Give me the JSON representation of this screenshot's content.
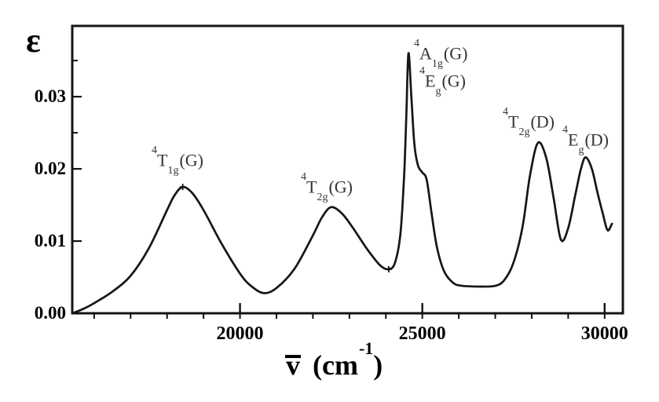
{
  "figure": {
    "xaxis_title": {
      "symbol": "v",
      "unit_open": "(cm",
      "exponent": "-1",
      "unit_close": ")"
    },
    "peak_labels": [
      {
        "sup": "4",
        "term": "T",
        "sub": "1g",
        "state": "(G)"
      },
      {
        "sup": "4",
        "term": "T",
        "sub": "2g",
        "state": "(G)"
      },
      {
        "sup": "4",
        "term": "A",
        "sub": "1g",
        "state": "(G)"
      },
      {
        "sup": "4",
        "term": "E",
        "sub": "g",
        "state": "(G)"
      },
      {
        "sup": "4",
        "term": "T",
        "sub": "2g",
        "state": "(D)"
      },
      {
        "sup": "4",
        "term": "E",
        "sub": "g",
        "state": "(D)"
      }
    ]
  },
  "chart_data": {
    "type": "line",
    "title": "",
    "xlabel": "v̄ (cm⁻¹)",
    "ylabel": "ε",
    "xlim": [
      15400,
      30500
    ],
    "ylim": [
      0,
      0.0398
    ],
    "grid": false,
    "x_ticks_major": [
      20000,
      25000,
      30000
    ],
    "x_tick_labels": [
      "20000",
      "25000",
      "30000"
    ],
    "x_ticks_minor": [
      16000,
      17000,
      18000,
      19000,
      20000,
      21000,
      22000,
      23000,
      24000,
      25000,
      26000,
      27000,
      28000,
      29000,
      30000
    ],
    "y_ticks_major": [
      0,
      0.01,
      0.02,
      0.03
    ],
    "y_tick_labels": [
      "0.00",
      "0.01",
      "0.02",
      "0.03"
    ],
    "y_ticks_minor": [
      0.025,
      0.035
    ],
    "line_color": "#161616",
    "series": [
      {
        "name": "epsilon",
        "x": [
          15400,
          15700,
          16000,
          16500,
          17000,
          17500,
          18000,
          18200,
          18430,
          18700,
          19000,
          19500,
          20000,
          20300,
          20650,
          21000,
          21500,
          22000,
          22250,
          22500,
          22800,
          23100,
          23500,
          23850,
          24080,
          24250,
          24400,
          24500,
          24560,
          24620,
          24700,
          24780,
          24880,
          25000,
          25120,
          25250,
          25400,
          25600,
          25850,
          26100,
          26600,
          27000,
          27250,
          27500,
          27750,
          27950,
          28170,
          28400,
          28600,
          28800,
          29000,
          29200,
          29350,
          29480,
          29650,
          29800,
          29950,
          30080,
          30200
        ],
        "y": [
          0.0,
          0.0006,
          0.0014,
          0.003,
          0.0052,
          0.009,
          0.0143,
          0.0163,
          0.0175,
          0.0166,
          0.0143,
          0.0096,
          0.0055,
          0.0038,
          0.0028,
          0.0035,
          0.0062,
          0.0108,
          0.0133,
          0.0147,
          0.0138,
          0.0118,
          0.0088,
          0.0066,
          0.0061,
          0.007,
          0.011,
          0.019,
          0.027,
          0.036,
          0.03,
          0.0235,
          0.0205,
          0.0195,
          0.0185,
          0.014,
          0.0092,
          0.0058,
          0.0042,
          0.0038,
          0.0037,
          0.0038,
          0.0046,
          0.007,
          0.012,
          0.019,
          0.0236,
          0.0215,
          0.016,
          0.0102,
          0.0118,
          0.0165,
          0.02,
          0.0216,
          0.02,
          0.0168,
          0.0138,
          0.0115,
          0.0124
        ]
      }
    ],
    "markers": [
      {
        "x": 18430,
        "y": 0.0175
      },
      {
        "x": 24080,
        "y": 0.0061
      }
    ],
    "annotations": [
      {
        "text": "4T1g(G)",
        "x": 18430,
        "y": 0.0175
      },
      {
        "text": "4T2g(G)",
        "x": 22500,
        "y": 0.0147
      },
      {
        "text": "4A1g(G)",
        "x": 24620,
        "y": 0.036
      },
      {
        "text": "4Eg(G)",
        "x": 24620,
        "y": 0.036
      },
      {
        "text": "4T2g(D)",
        "x": 28170,
        "y": 0.0236
      },
      {
        "text": "4Eg(D)",
        "x": 29480,
        "y": 0.0216
      }
    ]
  }
}
